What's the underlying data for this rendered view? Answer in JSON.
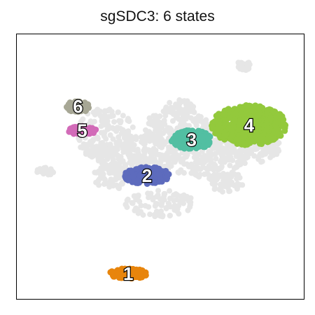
{
  "chart_data": {
    "type": "scatter",
    "title": "sgSDC3: 6 states",
    "xlabel": "",
    "ylabel": "",
    "xlim": [
      0,
      100
    ],
    "ylim": [
      0,
      100
    ],
    "grid": false,
    "legend": "none",
    "background_color": "#e6e6e6",
    "series": [
      {
        "name": "1",
        "label": "1",
        "color": "#e8850c",
        "center": [
          39.0,
          9.5
        ],
        "spread": [
          6.5,
          2.0
        ]
      },
      {
        "name": "2",
        "label": "2",
        "color": "#5d6bbd",
        "center": [
          45.5,
          46.5
        ],
        "spread": [
          8.0,
          3.2
        ]
      },
      {
        "name": "3",
        "label": "3",
        "color": "#52bfa2",
        "center": [
          61.0,
          60.0
        ],
        "spread": [
          7.0,
          3.6
        ]
      },
      {
        "name": "4",
        "label": "4",
        "color": "#93c93c",
        "center": [
          81.0,
          65.5
        ],
        "spread": [
          13.0,
          7.5
        ]
      },
      {
        "name": "5",
        "label": "5",
        "color": "#d26bb8",
        "center": [
          23.0,
          63.5
        ],
        "spread": [
          5.0,
          1.6
        ]
      },
      {
        "name": "6",
        "label": "6",
        "color": "#a7a795",
        "center": [
          21.5,
          72.5
        ],
        "spread": [
          4.0,
          2.2
        ]
      }
    ]
  }
}
